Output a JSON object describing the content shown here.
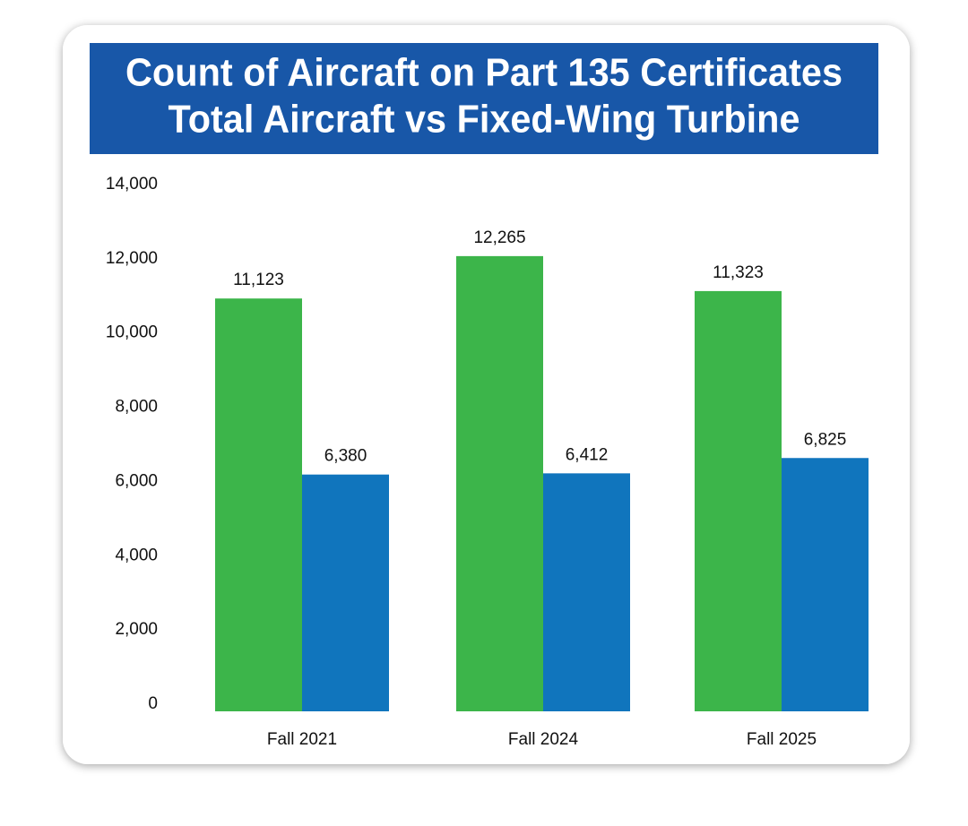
{
  "chart_data": {
    "type": "bar",
    "title": "Count of Aircraft on Part 135 Certificates",
    "subtitle": "Total Aircraft vs Fixed-Wing Turbine",
    "categories": [
      "Fall 2021",
      "Fall 2024",
      "Fall 2025"
    ],
    "series": [
      {
        "color": "#3cb54a",
        "values": [
          11123,
          12265,
          11323
        ],
        "value_labels": [
          "11,123",
          "12,265",
          "11,323"
        ]
      },
      {
        "color": "#1075bd",
        "values": [
          6380,
          6412,
          6825
        ],
        "value_labels": [
          "6,380",
          "6,412",
          "6,825"
        ]
      }
    ],
    "ylim": [
      0,
      14000
    ],
    "yticks": [
      0,
      {
        "value": 2000,
        "label": "2,000"
      },
      {
        "value": 4000,
        "label": "4,000"
      },
      {
        "value": 6000,
        "label": "6,000"
      },
      {
        "value": 8000,
        "label": "8,000"
      },
      {
        "value": 10000,
        "label": "10,000"
      },
      {
        "value": 12000,
        "label": "12,000"
      },
      {
        "value": 14000,
        "label": "14,000"
      }
    ],
    "grid": false
  }
}
